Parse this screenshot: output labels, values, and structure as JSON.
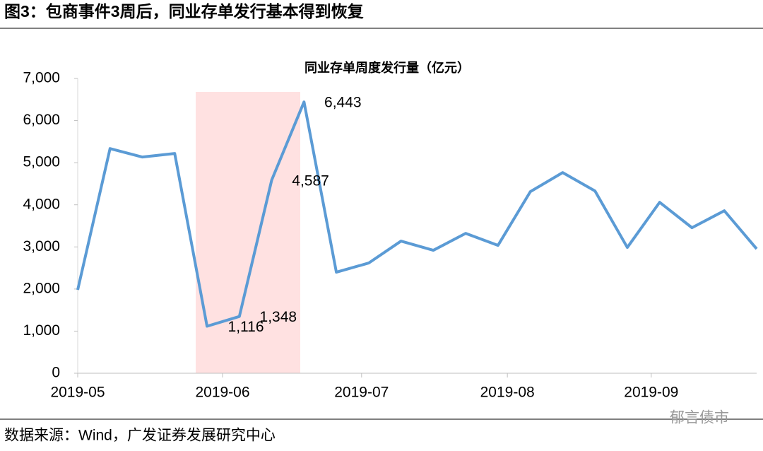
{
  "header": {
    "title": "图3：包商事件3周后，同业存单发行基本得到恢复"
  },
  "chart_data": {
    "type": "line",
    "title": "同业存单周度发行量（亿元）",
    "xlim": [
      0,
      21
    ],
    "xticks": [
      {
        "value": 0,
        "label": "2019-05"
      },
      {
        "value": 4.48,
        "label": "2019-06"
      },
      {
        "value": 8.78,
        "label": "2019-07"
      },
      {
        "value": 13.29,
        "label": "2019-08"
      },
      {
        "value": 17.74,
        "label": "2019-09"
      }
    ],
    "ylim": [
      0,
      7000
    ],
    "yticks": [
      0,
      {
        "value": 1000,
        "label": "1,000"
      },
      {
        "value": 2000,
        "label": "2,000"
      },
      {
        "value": 3000,
        "label": "3,000"
      },
      {
        "value": 4000,
        "label": "4,000"
      },
      {
        "value": 5000,
        "label": "5,000"
      },
      {
        "value": 6000,
        "label": "6,000"
      },
      {
        "value": 7000,
        "label": "7,000"
      }
    ],
    "color": "#5b9bd5",
    "values": [
      1980,
      5335,
      5134,
      5218,
      1116,
      1348,
      4587,
      6443,
      2400,
      2617,
      3138,
      2920,
      3322,
      3037,
      4312,
      4765,
      4329,
      2987,
      4060,
      3456,
      3859,
      2953
    ],
    "value_labels": [
      null,
      null,
      null,
      null,
      "1,116",
      "1,348",
      "4,587",
      "6,443",
      null,
      null,
      null,
      null,
      null,
      null,
      null,
      null,
      null,
      null,
      null,
      null,
      null,
      null
    ],
    "grid": false
  },
  "footer": {
    "source": "数据来源：Wind，广发证券发展研究中心",
    "watermark": "郁言债市"
  }
}
